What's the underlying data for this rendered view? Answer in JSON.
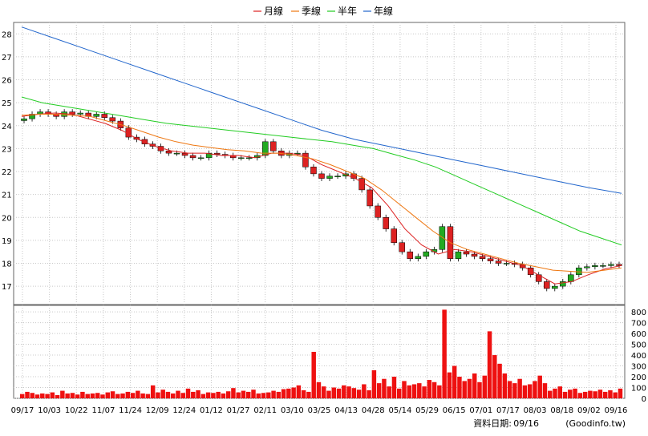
{
  "legend": {
    "items": [
      {
        "label": "月線",
        "color": "#dd2222"
      },
      {
        "label": "季線",
        "color": "#ee7711"
      },
      {
        "label": "半年",
        "color": "#22cc22"
      },
      {
        "label": "年線",
        "color": "#2266cc"
      }
    ]
  },
  "footer": {
    "label": "資料日期:",
    "date": "09/16",
    "source": "(Goodinfo.tw)"
  },
  "chart_data": [
    {
      "type": "line",
      "title": "",
      "y_ticks": [
        17,
        18,
        19,
        20,
        21,
        22,
        23,
        24,
        25,
        26,
        27,
        28
      ],
      "ylim": [
        16.2,
        28.5
      ],
      "grid": true,
      "legend_position": "top-center",
      "x_ticks": [
        "09/17",
        "10/03",
        "10/22",
        "11/07",
        "11/24",
        "12/09",
        "12/24",
        "01/12",
        "01/27",
        "02/11",
        "03/10",
        "03/25",
        "04/13",
        "04/28",
        "05/14",
        "05/29",
        "06/15",
        "07/01",
        "07/17",
        "08/03",
        "08/18",
        "09/02",
        "09/16"
      ],
      "series": [
        {
          "name": "月線",
          "color": "#dd2222",
          "values": [
            24.4,
            24.5,
            24.55,
            24.5,
            24.3,
            24.1,
            23.8,
            23.4,
            23.1,
            22.9,
            22.8,
            22.8,
            22.7,
            22.7,
            22.6,
            22.8,
            22.8,
            22.7,
            22.3,
            22.0,
            21.7,
            21.3,
            20.5,
            19.5,
            18.8,
            18.4,
            18.6,
            18.5,
            18.3,
            18.1,
            17.9,
            17.5,
            17.1,
            17.2,
            17.5,
            17.75,
            17.9
          ]
        },
        {
          "name": "季線",
          "color": "#ee7711",
          "values": [
            24.45,
            24.5,
            24.5,
            24.45,
            24.4,
            24.2,
            24.0,
            23.75,
            23.5,
            23.3,
            23.15,
            23.05,
            22.95,
            22.9,
            22.8,
            22.8,
            22.7,
            22.55,
            22.3,
            22.0,
            21.7,
            21.2,
            20.6,
            20.0,
            19.4,
            18.9,
            18.6,
            18.4,
            18.2,
            18.0,
            17.85,
            17.7,
            17.65,
            17.6,
            17.7,
            17.8
          ]
        },
        {
          "name": "半年",
          "color": "#22cc22",
          "values": [
            25.25,
            25.0,
            24.85,
            24.7,
            24.55,
            24.4,
            24.25,
            24.1,
            24.0,
            23.9,
            23.8,
            23.7,
            23.6,
            23.5,
            23.4,
            23.3,
            23.15,
            23.0,
            22.75,
            22.5,
            22.2,
            21.8,
            21.4,
            21.0,
            20.6,
            20.2,
            19.8,
            19.4,
            19.1,
            18.8
          ]
        },
        {
          "name": "年線",
          "color": "#2266cc",
          "values": [
            28.3,
            27.8,
            27.3,
            26.8,
            26.3,
            25.8,
            25.3,
            24.8,
            24.3,
            23.8,
            23.4,
            23.1,
            22.8,
            22.5,
            22.2,
            21.9,
            21.6,
            21.3,
            21.05
          ]
        }
      ],
      "candlesticks": {
        "up_color": "#22aa22",
        "down_color": "#dd2222",
        "close": [
          24.3,
          24.5,
          24.6,
          24.5,
          24.4,
          24.6,
          24.5,
          24.55,
          24.4,
          24.5,
          24.35,
          24.2,
          23.9,
          23.5,
          23.4,
          23.2,
          23.1,
          22.9,
          22.8,
          22.8,
          22.7,
          22.6,
          22.6,
          22.8,
          22.75,
          22.7,
          22.6,
          22.6,
          22.6,
          22.7,
          23.3,
          22.9,
          22.7,
          22.8,
          22.8,
          22.2,
          21.9,
          21.7,
          21.8,
          21.8,
          21.9,
          21.7,
          21.2,
          20.5,
          20.0,
          19.5,
          18.9,
          18.5,
          18.2,
          18.3,
          18.5,
          18.6,
          19.6,
          18.2,
          18.5,
          18.4,
          18.3,
          18.2,
          18.1,
          18.0,
          18.0,
          17.95,
          17.8,
          17.5,
          17.2,
          16.9,
          17.0,
          17.2,
          17.5,
          17.8,
          17.85,
          17.9,
          17.9,
          17.95,
          17.9
        ]
      }
    },
    {
      "type": "bar",
      "title": "",
      "y_ticks": [
        0,
        100,
        200,
        300,
        400,
        500,
        600,
        700,
        800
      ],
      "ylim": [
        0,
        860
      ],
      "grid": true,
      "color": "#ee1111",
      "values": [
        40,
        60,
        50,
        35,
        45,
        40,
        55,
        30,
        70,
        45,
        50,
        35,
        60,
        40,
        45,
        50,
        35,
        55,
        65,
        40,
        45,
        60,
        50,
        70,
        45,
        40,
        120,
        55,
        80,
        60,
        45,
        70,
        50,
        90,
        60,
        75,
        40,
        55,
        50,
        60,
        45,
        65,
        95,
        55,
        70,
        60,
        80,
        45,
        50,
        55,
        70,
        60,
        85,
        90,
        100,
        120,
        75,
        60,
        430,
        150,
        110,
        70,
        100,
        90,
        120,
        110,
        95,
        80,
        130,
        75,
        260,
        140,
        180,
        110,
        200,
        90,
        160,
        120,
        130,
        140,
        110,
        170,
        150,
        120,
        820,
        240,
        300,
        200,
        160,
        180,
        230,
        150,
        210,
        620,
        400,
        320,
        230,
        160,
        140,
        180,
        120,
        130,
        160,
        210,
        140,
        70,
        90,
        110,
        60,
        80,
        90,
        50,
        60,
        70,
        65,
        80,
        60,
        75,
        55,
        90
      ]
    }
  ]
}
